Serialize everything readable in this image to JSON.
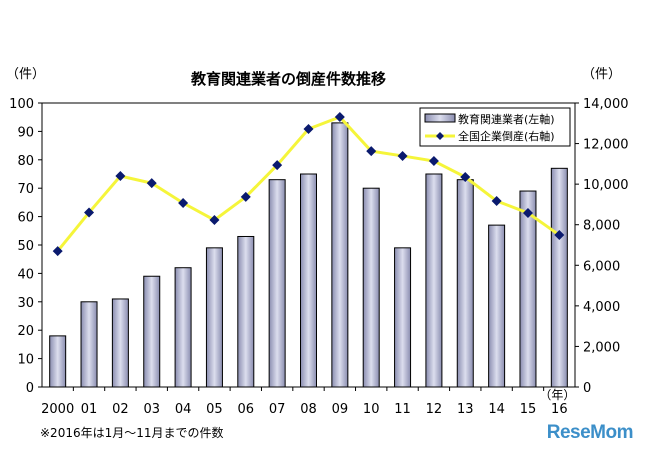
{
  "chart_data": {
    "type": "bar+line",
    "title": "教育関連業者の倒産件数推移",
    "ylabel_left": "（件）",
    "ylabel_right": "（件）",
    "xlabel": "（年）",
    "categories": [
      "2000",
      "01",
      "02",
      "03",
      "04",
      "05",
      "06",
      "07",
      "08",
      "09",
      "10",
      "11",
      "12",
      "13",
      "14",
      "15",
      "16"
    ],
    "ylim_left": [
      0,
      100
    ],
    "yticks_left": [
      0,
      10,
      20,
      30,
      40,
      50,
      60,
      70,
      80,
      90,
      100
    ],
    "ylim_right": [
      0,
      14000
    ],
    "yticks_right": [
      "0",
      "2,000",
      "4,000",
      "6,000",
      "8,000",
      "10,000",
      "12,000",
      "14,000"
    ],
    "grid": false,
    "legend_position": "top-right",
    "series": [
      {
        "name": "教育関連業者(左軸)",
        "type": "bar",
        "axis": "left",
        "color": "#b8bbd6",
        "values": [
          18,
          30,
          31,
          39,
          42,
          49,
          53,
          73,
          75,
          93,
          70,
          49,
          75,
          73,
          57,
          69,
          77
        ]
      },
      {
        "name": "全国企業倒産(右軸)",
        "type": "line",
        "axis": "right",
        "color": "#f5f53a",
        "marker_color": "#0a1a6e",
        "values": [
          6700,
          8600,
          10400,
          10050,
          9070,
          8230,
          9370,
          10940,
          12720,
          13310,
          11630,
          11390,
          11140,
          10350,
          9170,
          8580,
          7490
        ]
      }
    ]
  },
  "note": "※2016年は1月～11月までの件数",
  "watermark": "ReseMom"
}
